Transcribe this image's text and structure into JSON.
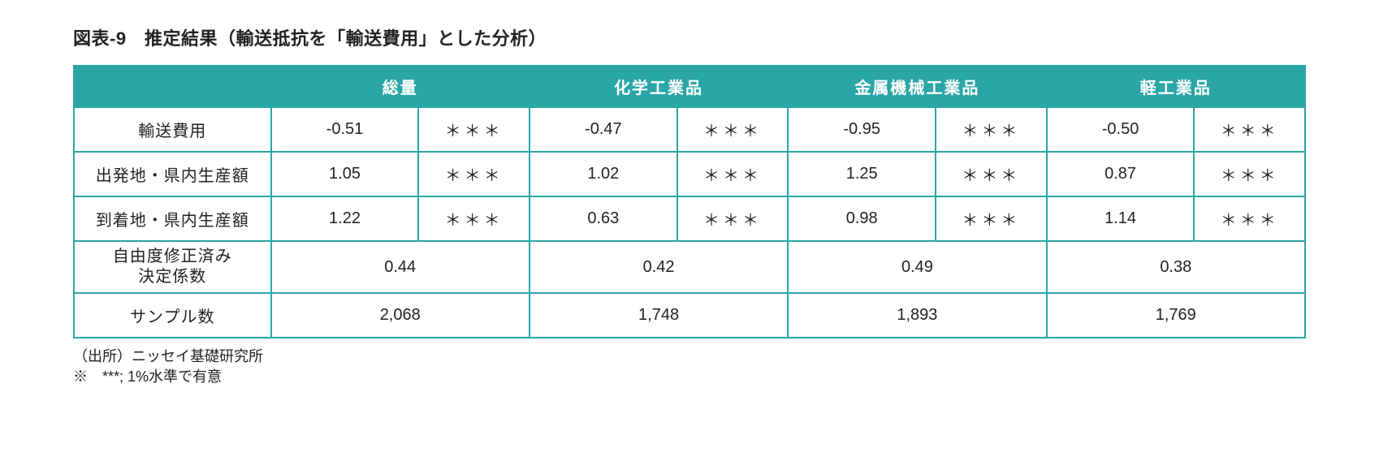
{
  "title": "図表-9　推定結果（輸送抵抗を「輸送費用」とした分析）",
  "table": {
    "type": "table",
    "border_color": "#2aa6a6",
    "header_bg": "#2aa6a6",
    "header_fg": "#ffffff",
    "cell_bg": "#ffffff",
    "cell_fg": "#222222",
    "col_headers": [
      "総量",
      "化学工業品",
      "金属機械工業品",
      "軽工業品"
    ],
    "row_labels": {
      "r1": "輸送費用",
      "r2": "出発地・県内生産額",
      "r3": "到着地・県内生産額",
      "r4a": "自由度修正済み",
      "r4b": "決定係数",
      "r5": "サンプル数"
    },
    "sig_mark": "＊＊＊",
    "rows_valsig": {
      "r1": {
        "c1": "-0.51",
        "s1": "＊＊＊",
        "c2": "-0.47",
        "s2": "＊＊＊",
        "c3": "-0.95",
        "s3": "＊＊＊",
        "c4": "-0.50",
        "s4": "＊＊＊"
      },
      "r2": {
        "c1": "1.05",
        "s1": "＊＊＊",
        "c2": "1.02",
        "s2": "＊＊＊",
        "c3": "1.25",
        "s3": "＊＊＊",
        "c4": "0.87",
        "s4": "＊＊＊"
      },
      "r3": {
        "c1": "1.22",
        "s1": "＊＊＊",
        "c2": "0.63",
        "s2": "＊＊＊",
        "c3": "0.98",
        "s3": "＊＊＊",
        "c4": "1.14",
        "s4": "＊＊＊"
      }
    },
    "rows_merged": {
      "r4": {
        "c1": "0.44",
        "c2": "0.42",
        "c3": "0.49",
        "c4": "0.38"
      },
      "r5": {
        "c1": "2,068",
        "c2": "1,748",
        "c3": "1,893",
        "c4": "1,769"
      }
    }
  },
  "footnotes": {
    "line1": "（出所）ニッセイ基礎研究所",
    "line2": "※　***; 1%水準で有意"
  }
}
